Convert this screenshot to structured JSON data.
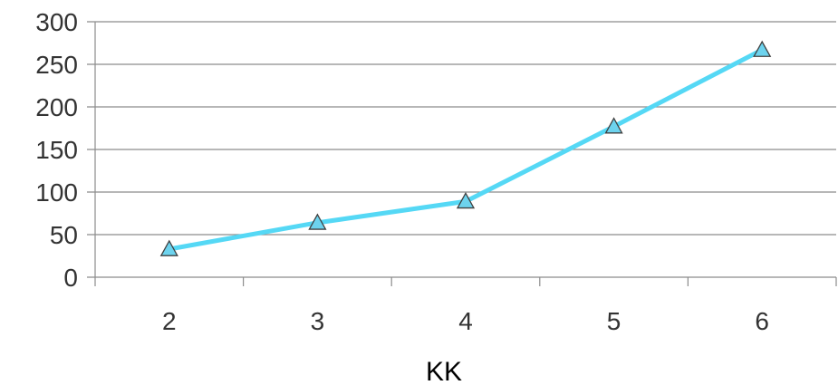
{
  "chart_data": {
    "type": "line",
    "x": [
      2,
      3,
      4,
      5,
      6
    ],
    "series": [
      {
        "values": [
          33,
          64,
          89,
          177,
          267
        ]
      }
    ],
    "xlabel": "KK",
    "ylabel": "",
    "title": "",
    "ylim": [
      0,
      300
    ],
    "yticks": [
      0,
      50,
      100,
      150,
      200,
      250,
      300
    ],
    "xtick_labels": [
      "2",
      "3",
      "4",
      "5",
      "6"
    ],
    "grid": true,
    "legend": "none",
    "marker": "triangle",
    "colors": {
      "line": "#55d8f5",
      "marker_fill": "#6dd3ee",
      "marker_stroke": "#404040",
      "grid": "#8c8c8c"
    }
  }
}
